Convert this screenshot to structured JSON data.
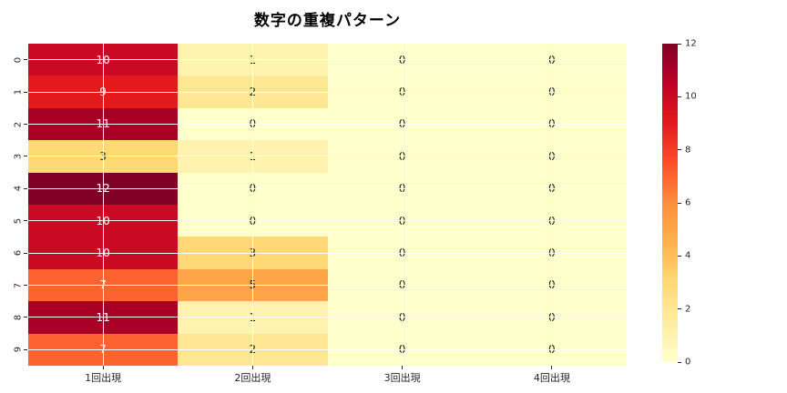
{
  "chart_data": {
    "type": "heatmap",
    "title": "数字の重複パターン",
    "row_labels": [
      "0",
      "1",
      "2",
      "3",
      "4",
      "5",
      "6",
      "7",
      "8",
      "9"
    ],
    "col_labels": [
      "1回出現",
      "2回出現",
      "3回出現",
      "4回出現"
    ],
    "values": [
      [
        10,
        1,
        0,
        0
      ],
      [
        9,
        2,
        0,
        0
      ],
      [
        11,
        0,
        0,
        0
      ],
      [
        3,
        1,
        0,
        0
      ],
      [
        12,
        0,
        0,
        0
      ],
      [
        10,
        0,
        0,
        0
      ],
      [
        10,
        3,
        0,
        0
      ],
      [
        7,
        5,
        0,
        0
      ],
      [
        11,
        1,
        0,
        0
      ],
      [
        7,
        2,
        0,
        0
      ]
    ],
    "vmin": 0,
    "vmax": 12,
    "colormap": "YlOrRd",
    "colormap_stops": [
      "#ffffcc",
      "#ffeda0",
      "#fed976",
      "#feb24c",
      "#fd8d3c",
      "#fc4e2a",
      "#e31a1c",
      "#bd0026",
      "#800026"
    ],
    "colorbar_ticks": [
      0,
      2,
      4,
      6,
      8,
      10,
      12
    ],
    "grid": true,
    "grid_color": "#ffffff",
    "annotation_color_dark_cells": "#ffffff",
    "annotation_color_light_cells": "#262626",
    "legend_position": "right-colorbar",
    "background_color": "#ffffff"
  }
}
